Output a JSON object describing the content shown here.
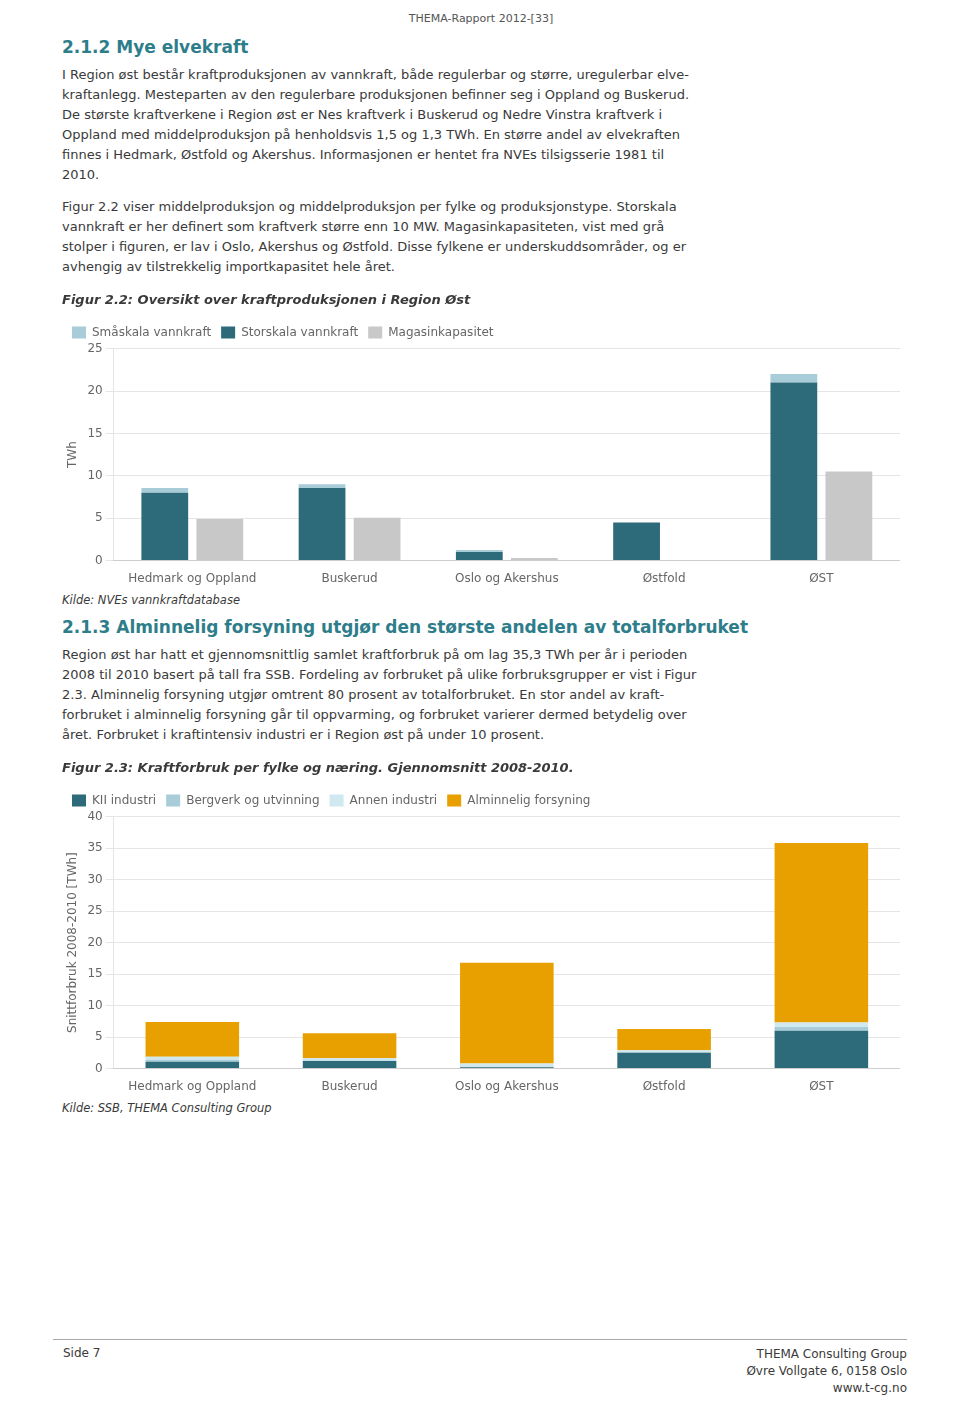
{
  "page_title": "THEMA-Rapport 2012-[33]",
  "section_title_1": "2.1.2   Mye elvekraft",
  "body_text_1": [
    "I Region øst består kraftproduksjonen av vannkraft, både regulerbar og større, uregulerbar elve-",
    "kraftanlegg. Mesteparten av den regulerbare produksjonen befinner seg i Oppland og Buskerud.",
    "De største kraftverkene i Region øst er Nes kraftverk i Buskerud og Nedre Vinstra kraftverk i",
    "Oppland med middelproduksjon på henholdsvis 1,5 og 1,3 TWh. En større andel av elvekraften",
    "finnes i Hedmark, Østfold og Akershus. Informasjonen er hentet fra NVEs tilsigsserie 1981 til",
    "2010."
  ],
  "body_text_2": [
    "Figur 2.2 viser middelproduksjon og middelproduksjon per fylke og produksjonstype. Storskala",
    "vannkraft er her definert som kraftverk større enn 10 MW. Magasinkapasiteten, vist med grå",
    "stolper i figuren, er lav i Oslo, Akershus og Østfold. Disse fylkene er underskuddsområder, og er",
    "avhengig av tilstrekkelig importkapasitet hele året."
  ],
  "section_title_2": "2.1.3   Alminnelig forsyning utgjør den største andelen av totalforbruket",
  "body_text_3": [
    "Region øst har hatt et gjennomsnittlig samlet kraftforbruk på om lag 35,3 TWh per år i perioden",
    "2008 til 2010 basert på tall fra SSB. Fordeling av forbruket på ulike forbruksgrupper er vist i Figur",
    "2.3. Alminnelig forsyning utgjør omtrent 80 prosent av totalforbruket. En stor andel av kraft-",
    "forbruket i alminnelig forsyning går til oppvarming, og forbruket varierer dermed betydelig over",
    "året. Forbruket i kraftintensiv industri er i Region øst på under 10 prosent."
  ],
  "footer_left": "Side 7",
  "footer_right": [
    "THEMA Consulting Group",
    "Øvre Vollgate 6, 0158 Oslo",
    "www.t-cg.no"
  ],
  "chart_data": [
    {
      "type": "bar",
      "title": "Figur 2.2: Oversikt over kraftproduksjonen i Region Øst",
      "ylabel": "TWh",
      "categories": [
        "Hedmark og Oppland",
        "Buskerud",
        "Oslo og Akershus",
        "Østfold",
        "ØST"
      ],
      "series": [
        {
          "name": "Småskala vannkraft",
          "color": "#a8ccd8",
          "values": [
            0.55,
            0.45,
            0.25,
            0.0,
            1.0
          ],
          "stacked": true
        },
        {
          "name": "Storskala vannkraft",
          "color": "#2e6b7a",
          "values": [
            8.0,
            8.55,
            1.0,
            4.5,
            21.0
          ],
          "stacked": true
        },
        {
          "name": "Magasinkapasitet",
          "color": "#c8c8c8",
          "values": [
            4.9,
            5.05,
            0.3,
            0.0,
            10.5
          ],
          "stacked": false
        }
      ],
      "ylim": [
        0,
        25
      ],
      "yticks": [
        0,
        5,
        10,
        15,
        20,
        25
      ],
      "grid": true,
      "legend": "upper left",
      "annotations": [
        "Kilde: NVEs vannkraftdatabase"
      ]
    },
    {
      "type": "bar",
      "title": "Figur 2.3: Kraftforbruk per fylke og næring. Gjennomsnitt 2008-2010.",
      "ylabel": "Snittforbruk 2008-2010 [TWh]",
      "categories": [
        "Hedmark og Oppland",
        "Buskerud",
        "Oslo og Akershus",
        "Østfold",
        "ØST"
      ],
      "series": [
        {
          "name": "KII industri",
          "color": "#2e6b7a",
          "values": [
            1.1,
            1.2,
            0.2,
            2.5,
            6.0
          ]
        },
        {
          "name": "Bergverk og utvinning",
          "color": "#a8ccd8",
          "values": [
            0.3,
            0.1,
            0.1,
            0.1,
            0.6
          ]
        },
        {
          "name": "Annen industri",
          "color": "#d0e8f0",
          "values": [
            0.5,
            0.4,
            0.5,
            0.3,
            0.7
          ]
        },
        {
          "name": "Alminnelig forsyning",
          "color": "#e8a000",
          "values": [
            5.5,
            3.9,
            16.0,
            3.4,
            28.5
          ]
        }
      ],
      "stacked": true,
      "ylim": [
        0,
        40
      ],
      "yticks": [
        0,
        5,
        10,
        15,
        20,
        25,
        30,
        35,
        40
      ],
      "grid": true,
      "legend": "upper left",
      "annotations": [
        "Kilde: SSB, THEMA Consulting Group"
      ]
    }
  ]
}
